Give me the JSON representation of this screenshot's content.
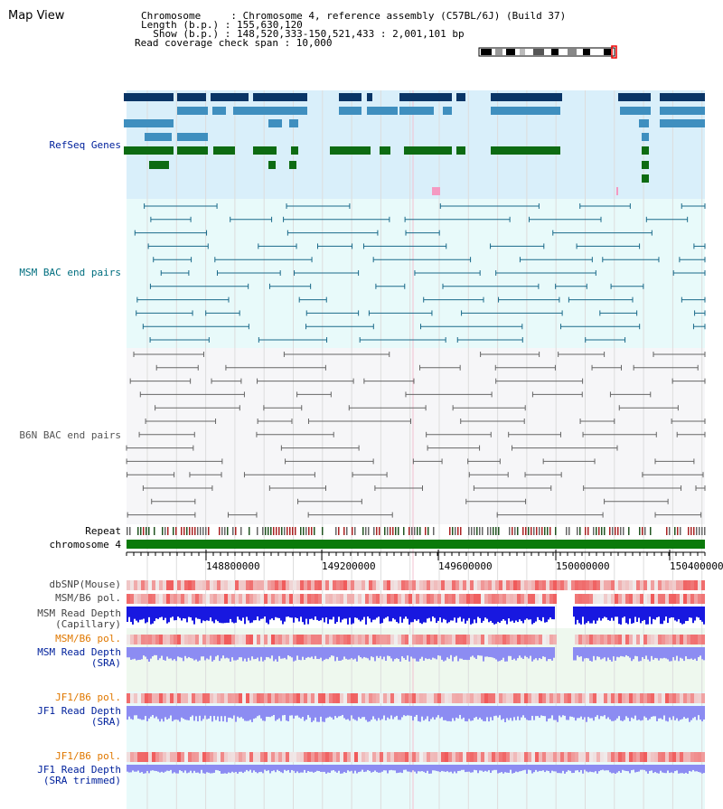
{
  "view": {
    "title": "Map View"
  },
  "header": {
    "chromosome_line": "Chromosome     : Chromosome 4, reference assembly (C57BL/6J) (Build 37)",
    "length_line": "Length (b.p.) : 155,630,120",
    "show_line": "  Show (b.p.) : 148,520,333-150,521,433 : 2,001,101 bp",
    "read_coverage_line": "Read coverage check span : 10,000"
  },
  "tracks": {
    "refseq": "RefSeq Genes",
    "msm_bac": "MSM BAC end pairs",
    "b6n_bac": "B6N BAC end pairs",
    "repeat": "Repeat",
    "chromosome": "chromosome 4",
    "dbsnp": "dbSNP(Mouse)",
    "msm_b6_pol_1": "MSM/B6 pol.",
    "msm_read_depth_cap_1": "MSM Read Depth",
    "msm_read_depth_cap_2": "(Capillary)",
    "msm_b6_pol_2": "MSM/B6 pol.",
    "msm_read_depth_sra_1": "MSM Read Depth",
    "msm_read_depth_sra_2": "(SRA)",
    "jf1_b6_pol_1": "JF1/B6 pol.",
    "jf1_read_depth_sra_1": "JF1 Read Depth",
    "jf1_read_depth_sra_2": "(SRA)",
    "jf1_b6_pol_2": "JF1/B6 pol.",
    "jf1_read_depth_trim_1": "JF1 Read Depth",
    "jf1_read_depth_trim_2": "(SRA trimmed)"
  },
  "axis": {
    "ticks": [
      "148800000",
      "149200000",
      "149600000",
      "150000000",
      "150400000"
    ]
  },
  "colors": {
    "refseq_bg": "#d9effa",
    "bac_bg": "#e8fafa",
    "b6n_bg": "#f6f6f8",
    "gene_dark": "#0a3566",
    "gene_mid": "#3f8fbf",
    "gene_green": "#0d6b12",
    "msm_line": "#1a6a8a",
    "b6n_line": "#666666",
    "chrom_green": "#0b7a0b",
    "label_blue": "#00219c",
    "label_teal": "#006e7f",
    "label_orange": "#e07800",
    "depth_blue": "#1818e0",
    "depth_light": "#8c8cf2"
  }
}
